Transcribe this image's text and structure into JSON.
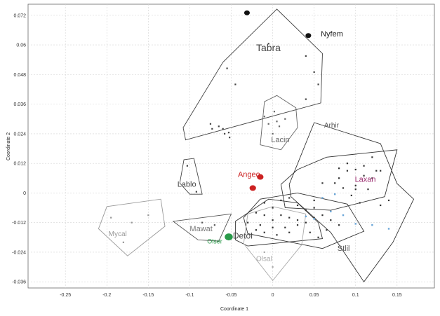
{
  "chart_data": {
    "type": "scatter",
    "xlabel": "Coordinate 1",
    "ylabel": "Coordinate 2",
    "xlim": [
      -0.295,
      0.195
    ],
    "ylim": [
      -0.0385,
      0.0765
    ],
    "xticks": [
      "-0.25",
      "-0.2",
      "-0.15",
      "-0.1",
      "-0.05",
      "0",
      "0.05",
      "0.1",
      "0.15"
    ],
    "xtick_values": [
      -0.25,
      -0.2,
      -0.15,
      -0.1,
      -0.05,
      0,
      0.05,
      0.1,
      0.15
    ],
    "yticks": [
      "0.072",
      "0.06",
      "0.048",
      "0.036",
      "0.024",
      "0.012",
      "0",
      "-0.012",
      "-0.024",
      "-0.036"
    ],
    "ytick_values": [
      0.072,
      0.06,
      0.048,
      0.036,
      0.024,
      0.012,
      0,
      -0.012,
      -0.024,
      -0.036
    ],
    "grid": true,
    "groups": [
      {
        "name": "Tabra",
        "color": "#444444",
        "label_color": "#444444",
        "label_pos": [
          -0.02,
          0.0575
        ],
        "label_size": 14,
        "hull": [
          [
            0.005,
            0.0745
          ],
          [
            0.06,
            0.0565
          ],
          [
            0.058,
            0.0365
          ],
          [
            -0.105,
            0.0215
          ],
          [
            -0.108,
            0.0265
          ],
          [
            -0.06,
            0.053
          ]
        ],
        "points": [
          [
            -0.055,
            0.0505
          ],
          [
            -0.045,
            0.044
          ],
          [
            -0.075,
            0.028
          ],
          [
            -0.073,
            0.026
          ],
          [
            -0.065,
            0.027
          ],
          [
            -0.06,
            0.026
          ],
          [
            -0.058,
            0.024
          ],
          [
            -0.052,
            0.0225
          ],
          [
            -0.053,
            0.0245
          ],
          [
            -0.005,
            0.0605
          ],
          [
            0.04,
            0.0555
          ],
          [
            0.05,
            0.049
          ],
          [
            0.055,
            0.044
          ],
          [
            0.04,
            0.038
          ]
        ]
      },
      {
        "name": "Lacin",
        "color": "#666666",
        "label_color": "#666666",
        "label_pos": [
          -0.002,
          0.0205
        ],
        "label_size": 11,
        "hull": [
          [
            0.005,
            0.0395
          ],
          [
            0.028,
            0.0345
          ],
          [
            0.03,
            0.0265
          ],
          [
            0.01,
            0.0175
          ],
          [
            -0.015,
            0.0195
          ],
          [
            -0.01,
            0.037
          ]
        ],
        "points": [
          [
            -0.01,
            0.031
          ],
          [
            -0.005,
            0.028
          ],
          [
            0.002,
            0.033
          ],
          [
            0.005,
            0.029
          ],
          [
            0.008,
            0.027
          ],
          [
            0.015,
            0.03
          ],
          [
            0.0,
            0.024
          ]
        ]
      },
      {
        "name": "Lablo",
        "color": "#444444",
        "label_color": "#444444",
        "label_pos": [
          -0.115,
          0.0025
        ],
        "label_size": 11,
        "hull": [
          [
            -0.107,
            0.0135
          ],
          [
            -0.095,
            0.014
          ],
          [
            -0.085,
            -0.0005
          ],
          [
            -0.1,
            -0.0005
          ],
          [
            -0.112,
            0.004
          ]
        ],
        "points": [
          [
            -0.103,
            0.011
          ],
          [
            -0.092,
            0.0005
          ]
        ]
      },
      {
        "name": "Arhir",
        "color": "#333333",
        "label_color": "#555555",
        "label_pos": [
          0.062,
          0.0265
        ],
        "label_size": 10,
        "hull": [
          [
            0.05,
            0.0285
          ],
          [
            0.13,
            0.02
          ],
          [
            0.15,
            0.0038
          ],
          [
            0.17,
            -0.0025
          ],
          [
            0.145,
            -0.02
          ],
          [
            0.11,
            -0.036
          ],
          [
            0.07,
            -0.016
          ],
          [
            0.022,
            -0.0015
          ],
          [
            0.02,
            0.0035
          ]
        ],
        "points": [
          [
            0.12,
            0.0145
          ],
          [
            0.125,
            0.009
          ],
          [
            0.09,
            0.009
          ],
          [
            0.11,
            0.007
          ],
          [
            0.12,
            0.006
          ],
          [
            0.08,
            0.006
          ],
          [
            0.1,
            0.003
          ],
          [
            0.105,
            -0.004
          ],
          [
            0.13,
            -0.005
          ],
          [
            0.14,
            -0.003
          ]
        ]
      },
      {
        "name": "Laxan",
        "color": "#333333",
        "label_color": "#9a2a6e",
        "label_pos": [
          0.099,
          0.0045
        ],
        "label_size": 11,
        "hull": [
          [
            0.065,
            0.0145
          ],
          [
            0.15,
            0.0175
          ],
          [
            0.135,
            -0.0015
          ],
          [
            0.07,
            -0.007
          ],
          [
            0.015,
            -0.006
          ],
          [
            0.01,
            0.0035
          ],
          [
            0.03,
            0.0095
          ]
        ],
        "points": [
          [
            0.08,
            0.01
          ],
          [
            0.09,
            0.012
          ],
          [
            0.1,
            0.0095
          ],
          [
            0.11,
            0.011
          ],
          [
            0.13,
            0.009
          ],
          [
            0.075,
            0.004
          ],
          [
            0.085,
            0.002
          ],
          [
            0.095,
            -0.001
          ],
          [
            0.1,
            0.0015
          ],
          [
            0.115,
            0.0015
          ],
          [
            0.06,
            0.004
          ],
          [
            0.05,
            -0.003
          ]
        ]
      },
      {
        "name": "Stlil",
        "color": "#333333",
        "label_color": "#555555",
        "label_pos": [
          0.078,
          -0.0235
        ],
        "label_size": 11,
        "hull": [
          [
            0.03,
            0.0
          ],
          [
            0.09,
            -0.0045
          ],
          [
            0.11,
            -0.0155
          ],
          [
            0.06,
            -0.0225
          ],
          [
            -0.03,
            -0.0165
          ],
          [
            -0.035,
            -0.01
          ],
          [
            -0.015,
            -0.0025
          ]
        ],
        "points": [
          [
            -0.01,
            -0.004
          ],
          [
            0.0,
            -0.006
          ],
          [
            0.01,
            -0.003
          ],
          [
            0.02,
            -0.002
          ],
          [
            0.03,
            -0.005
          ],
          [
            0.04,
            -0.007
          ],
          [
            0.05,
            -0.006
          ],
          [
            -0.02,
            -0.008
          ],
          [
            -0.01,
            -0.009
          ],
          [
            0.0,
            -0.011
          ],
          [
            0.01,
            -0.009
          ],
          [
            0.02,
            -0.01
          ],
          [
            0.03,
            -0.011
          ],
          [
            0.04,
            -0.012
          ],
          [
            0.05,
            -0.01
          ],
          [
            0.06,
            -0.009
          ],
          [
            0.07,
            -0.011
          ],
          [
            -0.015,
            -0.013
          ],
          [
            0.0,
            -0.014
          ],
          [
            0.015,
            -0.014
          ],
          [
            0.03,
            -0.013
          ],
          [
            0.045,
            -0.016
          ],
          [
            0.055,
            -0.018
          ],
          [
            0.065,
            -0.015
          ],
          [
            0.08,
            -0.013
          ]
        ]
      },
      {
        "name": "Detol",
        "color": "#333333",
        "label_color": "#444444",
        "label_pos": [
          -0.048,
          -0.0185
        ],
        "label_size": 12,
        "hull": [
          [
            -0.005,
            -0.0025
          ],
          [
            0.03,
            -0.004
          ],
          [
            0.055,
            -0.012
          ],
          [
            0.06,
            -0.0185
          ],
          [
            -0.03,
            -0.0215
          ],
          [
            -0.045,
            -0.019
          ],
          [
            -0.045,
            -0.0115
          ]
        ],
        "points": [
          [
            -0.03,
            -0.012
          ],
          [
            -0.02,
            -0.015
          ],
          [
            -0.01,
            -0.016
          ],
          [
            0.005,
            -0.017
          ],
          [
            0.02,
            -0.016
          ]
        ]
      },
      {
        "name": "Olsal",
        "color": "#aaaaaa",
        "label_color": "#aaaaaa",
        "label_pos": [
          -0.02,
          -0.0275
        ],
        "label_size": 10,
        "hull": [
          [
            0.0,
            -0.0055
          ],
          [
            0.04,
            -0.0085
          ],
          [
            0.035,
            -0.021
          ],
          [
            0.0,
            -0.0355
          ],
          [
            -0.035,
            -0.0205
          ],
          [
            -0.03,
            -0.0085
          ]
        ],
        "points": [
          [
            0.0,
            -0.03
          ],
          [
            -0.01,
            -0.024
          ]
        ]
      },
      {
        "name": "Mawat",
        "color": "#555555",
        "label_color": "#777777",
        "label_pos": [
          -0.1,
          -0.0155
        ],
        "label_size": 11,
        "hull": [
          [
            -0.12,
            -0.0115
          ],
          [
            -0.05,
            -0.0085
          ],
          [
            -0.065,
            -0.0195
          ],
          [
            -0.09,
            -0.019
          ]
        ],
        "points": [
          [
            -0.085,
            -0.012
          ],
          [
            -0.07,
            -0.013
          ]
        ]
      },
      {
        "name": "Mycal",
        "color": "#999999",
        "label_color": "#999999",
        "label_pos": [
          -0.198,
          -0.0175
        ],
        "label_size": 10,
        "hull": [
          [
            -0.2,
            -0.0055
          ],
          [
            -0.135,
            -0.0025
          ],
          [
            -0.13,
            -0.0135
          ],
          [
            -0.175,
            -0.0255
          ],
          [
            -0.21,
            -0.0145
          ]
        ],
        "points": [
          [
            -0.195,
            -0.01
          ],
          [
            -0.17,
            -0.012
          ],
          [
            -0.18,
            -0.02
          ],
          [
            -0.15,
            -0.009
          ]
        ]
      },
      {
        "name": "Angeo",
        "color": "#cc2222",
        "label_color": "#cc2222",
        "label_pos": [
          -0.042,
          0.0065
        ],
        "label_size": 11,
        "hull": [],
        "points": [
          [
            -0.015,
            0.0065
          ],
          [
            -0.024,
            0.002
          ]
        ],
        "marker_size": 4
      },
      {
        "name": "Olser",
        "color": "#2a9a4a",
        "label_color": "#2a9a4a",
        "label_pos": [
          -0.079,
          -0.0205
        ],
        "label_size": 9,
        "hull": [],
        "points": [
          [
            -0.053,
            -0.0178
          ]
        ],
        "marker_size": 5
      },
      {
        "name": "Nyfem",
        "color": "#111111",
        "label_color": "#222222",
        "label_pos": [
          0.058,
          0.0635
        ],
        "label_size": 11,
        "hull": [],
        "points": [
          [
            -0.031,
            0.073
          ],
          [
            0.043,
            0.0638
          ]
        ],
        "marker_size": 3.5
      },
      {
        "name": "",
        "color": "#6aa6d8",
        "label_color": "#6aa6d8",
        "label_pos": [
          0.07,
          -0.002
        ],
        "label_size": 8,
        "hull": [],
        "points": [
          [
            0.04,
            -0.0095
          ],
          [
            0.05,
            -0.0105
          ],
          [
            0.07,
            -0.0075
          ],
          [
            0.085,
            -0.009
          ],
          [
            0.1,
            -0.0125
          ],
          [
            0.12,
            -0.013
          ],
          [
            0.14,
            -0.0145
          ],
          [
            0.06,
            -0.002
          ],
          [
            0.075,
            -0.0005
          ]
        ],
        "marker_size": 1.2
      }
    ]
  }
}
